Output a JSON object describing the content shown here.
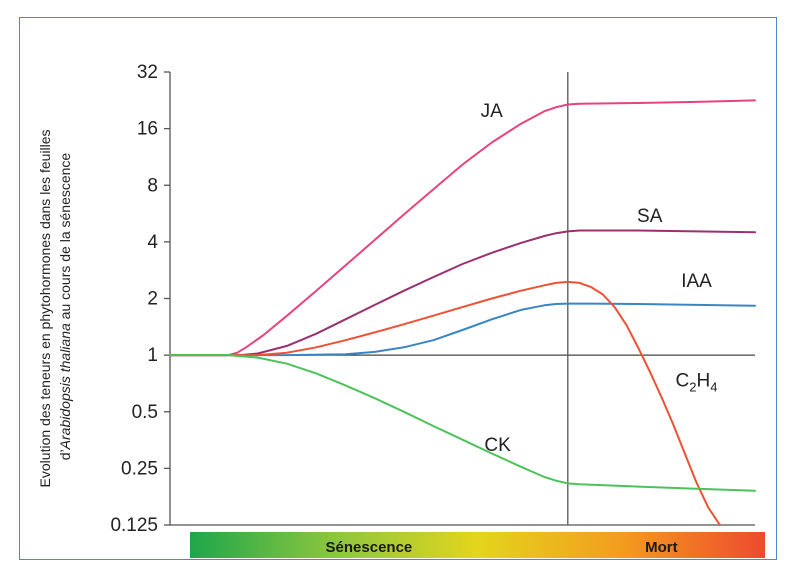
{
  "chart_data": {
    "type": "line",
    "ylabel_line1": "Evolution des teneurs en phytohormones dans les feuilles",
    "ylabel_line2_prefix": "d’",
    "ylabel_line2_italic": "Arabidopsis thaliana",
    "ylabel_line2_suffix": " au cours de la sénescence",
    "y_scale": "log2",
    "ylim": [
      0.125,
      32
    ],
    "y_ticks": [
      {
        "value": 32,
        "label": "32"
      },
      {
        "value": 16,
        "label": "16"
      },
      {
        "value": 8,
        "label": "8"
      },
      {
        "value": 4,
        "label": "4"
      },
      {
        "value": 2,
        "label": "2"
      },
      {
        "value": 1,
        "label": "1"
      },
      {
        "value": 0.5,
        "label": "0.5"
      },
      {
        "value": 0.25,
        "label": "0.25"
      },
      {
        "value": 0.125,
        "label": "0.125"
      }
    ],
    "xlim": [
      0,
      100
    ],
    "divider_x": 68,
    "reference_y": 1,
    "phases": [
      {
        "label": "Sénescence",
        "x_center": 34
      },
      {
        "label": "Mort",
        "x_center": 84
      }
    ],
    "phase_bar_colors": [
      "#1ea64b",
      "#8cc63f",
      "#e3d51c",
      "#f39c1e",
      "#ee4a2f"
    ],
    "series": [
      {
        "name": "JA",
        "color": "#e8437f",
        "label_pos": {
          "x": 55,
          "y": 18.5
        },
        "points": [
          [
            0,
            1
          ],
          [
            10,
            1
          ],
          [
            11.5,
            1.03
          ],
          [
            13,
            1.1
          ],
          [
            16,
            1.28
          ],
          [
            20,
            1.62
          ],
          [
            25,
            2.2
          ],
          [
            30,
            3.0
          ],
          [
            35,
            4.1
          ],
          [
            40,
            5.6
          ],
          [
            45,
            7.6
          ],
          [
            50,
            10.3
          ],
          [
            55,
            13.5
          ],
          [
            60,
            17.0
          ],
          [
            64,
            19.8
          ],
          [
            66,
            20.8
          ],
          [
            68,
            21.5
          ],
          [
            70,
            21.7
          ],
          [
            80,
            21.9
          ],
          [
            90,
            22.2
          ],
          [
            100,
            22.6
          ]
        ]
      },
      {
        "name": "SA",
        "color": "#9b2f6f",
        "label_pos": {
          "x": 82,
          "y": 5.1
        },
        "points": [
          [
            0,
            1
          ],
          [
            10,
            1
          ],
          [
            12,
            1.0
          ],
          [
            15,
            1.02
          ],
          [
            20,
            1.12
          ],
          [
            25,
            1.3
          ],
          [
            30,
            1.55
          ],
          [
            35,
            1.85
          ],
          [
            40,
            2.2
          ],
          [
            45,
            2.6
          ],
          [
            50,
            3.05
          ],
          [
            55,
            3.5
          ],
          [
            60,
            3.95
          ],
          [
            64,
            4.3
          ],
          [
            66,
            4.45
          ],
          [
            68,
            4.55
          ],
          [
            70,
            4.6
          ],
          [
            80,
            4.6
          ],
          [
            90,
            4.55
          ],
          [
            100,
            4.5
          ]
        ]
      },
      {
        "name": "IAA",
        "color": "#3a86c4",
        "label_pos": {
          "x": 90,
          "y": 2.3
        },
        "points": [
          [
            0,
            1
          ],
          [
            10,
            1
          ],
          [
            20,
            1.0
          ],
          [
            30,
            1.01
          ],
          [
            35,
            1.04
          ],
          [
            40,
            1.1
          ],
          [
            45,
            1.2
          ],
          [
            50,
            1.36
          ],
          [
            55,
            1.55
          ],
          [
            60,
            1.74
          ],
          [
            64,
            1.84
          ],
          [
            66,
            1.87
          ],
          [
            68,
            1.88
          ],
          [
            72,
            1.88
          ],
          [
            80,
            1.87
          ],
          [
            90,
            1.85
          ],
          [
            100,
            1.83
          ]
        ]
      },
      {
        "name": "C2H4",
        "label_main": "C",
        "label_sub": "2",
        "label_end": "H",
        "label_sub2": "4",
        "color": "#ee5133",
        "label_pos": {
          "x": 90,
          "y": 0.68
        },
        "points": [
          [
            0,
            1
          ],
          [
            10,
            1
          ],
          [
            15,
            1.0
          ],
          [
            20,
            1.03
          ],
          [
            25,
            1.1
          ],
          [
            30,
            1.2
          ],
          [
            35,
            1.32
          ],
          [
            40,
            1.46
          ],
          [
            45,
            1.62
          ],
          [
            50,
            1.8
          ],
          [
            55,
            2.0
          ],
          [
            60,
            2.2
          ],
          [
            64,
            2.35
          ],
          [
            66,
            2.42
          ],
          [
            68,
            2.45
          ],
          [
            70,
            2.42
          ],
          [
            72,
            2.3
          ],
          [
            74,
            2.1
          ],
          [
            76,
            1.8
          ],
          [
            78,
            1.45
          ],
          [
            80,
            1.1
          ],
          [
            82,
            0.82
          ],
          [
            84,
            0.6
          ],
          [
            86,
            0.43
          ],
          [
            88,
            0.3
          ],
          [
            90,
            0.21
          ],
          [
            92,
            0.155
          ],
          [
            94,
            0.125
          ]
        ]
      },
      {
        "name": "CK",
        "color": "#4cc35a",
        "label_pos": {
          "x": 56,
          "y": 0.31
        },
        "points": [
          [
            0,
            1
          ],
          [
            10,
            1
          ],
          [
            15,
            0.97
          ],
          [
            20,
            0.9
          ],
          [
            25,
            0.8
          ],
          [
            30,
            0.69
          ],
          [
            35,
            0.59
          ],
          [
            40,
            0.5
          ],
          [
            45,
            0.42
          ],
          [
            50,
            0.355
          ],
          [
            55,
            0.3
          ],
          [
            60,
            0.255
          ],
          [
            64,
            0.225
          ],
          [
            66,
            0.215
          ],
          [
            68,
            0.208
          ],
          [
            70,
            0.206
          ],
          [
            80,
            0.2
          ],
          [
            90,
            0.195
          ],
          [
            100,
            0.19
          ]
        ]
      }
    ]
  }
}
